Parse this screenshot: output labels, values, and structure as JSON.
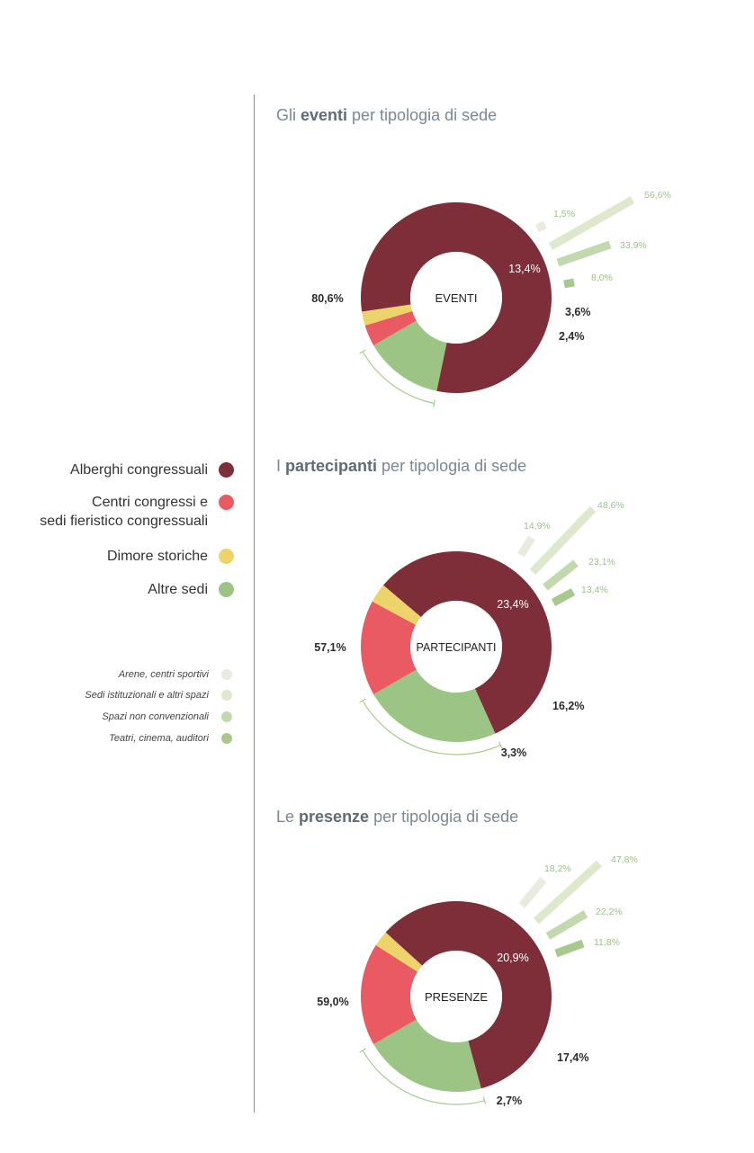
{
  "legend": {
    "main": [
      {
        "lines": [
          "Alberghi congressuali"
        ],
        "color": "#7e2e38"
      },
      {
        "lines": [
          "Centri congressi e",
          "sedi fieristico congressuali"
        ],
        "color": "#e95a62"
      },
      {
        "lines": [
          "Dimore storiche"
        ],
        "color": "#ecd36a"
      },
      {
        "lines": [
          "Altre sedi"
        ],
        "color": "#9cc585"
      }
    ],
    "sub": [
      {
        "label": "Arene, centri sportivi",
        "color": "#e7ecdf"
      },
      {
        "label": "Sedi istituzionali e altri spazi",
        "color": "#dde8cc"
      },
      {
        "label": "Spazi non convenzionali",
        "color": "#c2d9ae"
      },
      {
        "label": "Teatri, cinema, auditori",
        "color": "#a8c98d"
      }
    ]
  },
  "chart_data": [
    {
      "type": "pie",
      "title_parts": [
        "Gli ",
        "eventi",
        " per tipologia di sede"
      ],
      "center_label": "EVENTI",
      "slices": [
        {
          "name": "Alberghi congressuali",
          "value": 80.6,
          "label": "80,6%"
        },
        {
          "name": "Centri congressi e sedi fieristico congressuali",
          "value": 3.6,
          "label": "3,6%"
        },
        {
          "name": "Dimore storiche",
          "value": 2.4,
          "label": "2,4%"
        },
        {
          "name": "Altre sedi",
          "value": 13.4,
          "label": "13,4%"
        }
      ],
      "breakdown": [
        {
          "name": "Arene, centri sportivi",
          "value": 1.5,
          "label": "1,5%"
        },
        {
          "name": "Sedi istituzionali e altri spazi",
          "value": 56.6,
          "label": "56,6%"
        },
        {
          "name": "Spazi non convenzionali",
          "value": 33.9,
          "label": "33,9%"
        },
        {
          "name": "Teatri, cinema, auditori",
          "value": 8.0,
          "label": "8,0%"
        }
      ]
    },
    {
      "type": "pie",
      "title_parts": [
        "I ",
        "partecipanti",
        " per tipologia di sede"
      ],
      "center_label": "PARTECIPANTI",
      "slices": [
        {
          "name": "Alberghi congressuali",
          "value": 57.1,
          "label": "57,1%"
        },
        {
          "name": "Centri congressi e sedi fieristico congressuali",
          "value": 16.2,
          "label": "16,2%"
        },
        {
          "name": "Dimore storiche",
          "value": 3.3,
          "label": "3,3%"
        },
        {
          "name": "Altre sedi",
          "value": 23.4,
          "label": "23,4%"
        }
      ],
      "breakdown": [
        {
          "name": "Arene, centri sportivi",
          "value": 14.9,
          "label": "14,9%"
        },
        {
          "name": "Sedi istituzionali e altri spazi",
          "value": 48.6,
          "label": "48,6%"
        },
        {
          "name": "Spazi non convenzionali",
          "value": 23.1,
          "label": "23,1%"
        },
        {
          "name": "Teatri, cinema, auditori",
          "value": 13.4,
          "label": "13,4%"
        }
      ]
    },
    {
      "type": "pie",
      "title_parts": [
        "Le ",
        "presenze",
        " per tipologia di sede"
      ],
      "center_label": "PRESENZE",
      "slices": [
        {
          "name": "Alberghi congressuali",
          "value": 59.0,
          "label": "59,0%"
        },
        {
          "name": "Centri congressi e sedi fieristico congressuali",
          "value": 17.4,
          "label": "17,4%"
        },
        {
          "name": "Dimore storiche",
          "value": 2.7,
          "label": "2,7%"
        },
        {
          "name": "Altre sedi",
          "value": 20.9,
          "label": "20,9%"
        }
      ],
      "breakdown": [
        {
          "name": "Arene, centri sportivi",
          "value": 18.2,
          "label": "18,2%"
        },
        {
          "name": "Sedi istituzionali e altri spazi",
          "value": 47.8,
          "label": "47,8%"
        },
        {
          "name": "Spazi non convenzionali",
          "value": 22.2,
          "label": "22,2%"
        },
        {
          "name": "Teatri, cinema, auditori",
          "value": 11.8,
          "label": "11,8%"
        }
      ]
    }
  ]
}
